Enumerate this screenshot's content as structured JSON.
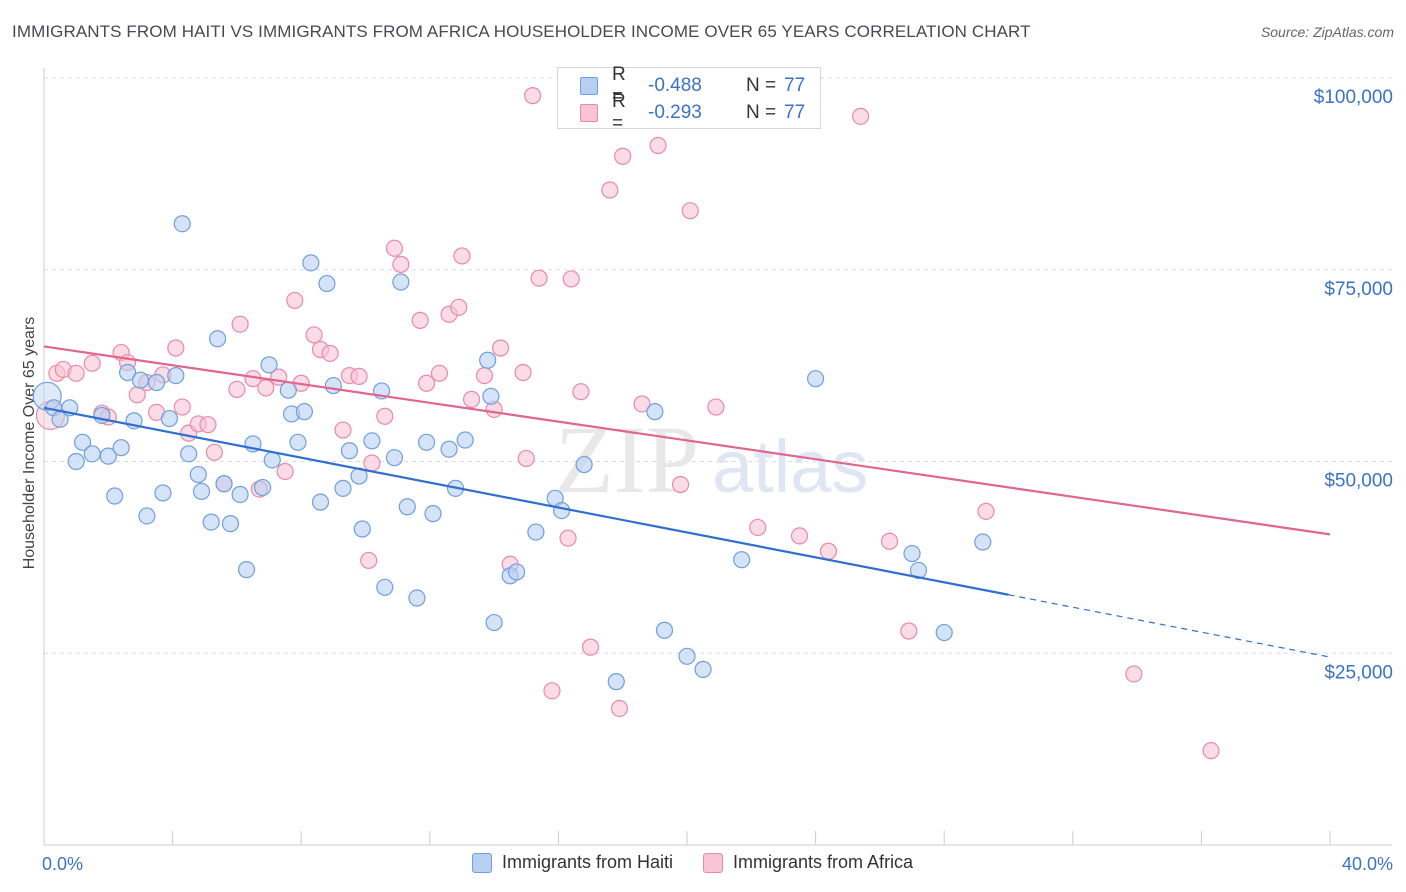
{
  "header": {
    "title": "IMMIGRANTS FROM HAITI VS IMMIGRANTS FROM AFRICA HOUSEHOLDER INCOME OVER 65 YEARS CORRELATION CHART",
    "source": "Source: ZipAtlas.com"
  },
  "watermark": {
    "zip": "ZIP",
    "atlas": "atlas"
  },
  "legend": {
    "haiti": {
      "r_label": "R =",
      "r_value": "-0.488",
      "n_label": "N =",
      "n_value": "77"
    },
    "africa": {
      "r_label": "R =",
      "r_value": "-0.293",
      "n_label": "N =",
      "n_value": "77"
    }
  },
  "colors": {
    "haiti_fill": "#b7d0f2",
    "haiti_stroke": "#6f9fde",
    "haiti_line": "#2f6fcf",
    "africa_fill": "#f8c3d3",
    "africa_stroke": "#e98aa8",
    "africa_line": "#e0658f",
    "axis_label": "#3b73c4",
    "grid": "#dcdcdc"
  },
  "chart_data": {
    "type": "scatter",
    "title": "IMMIGRANTS FROM HAITI VS IMMIGRANTS FROM AFRICA HOUSEHOLDER INCOME OVER 65 YEARS CORRELATION CHART",
    "xlabel": "",
    "ylabel": "Householder Income Over 65 years",
    "xlim": [
      0,
      40
    ],
    "ylim": [
      0,
      105000
    ],
    "x_tick_labels": [
      "0.0%",
      "40.0%"
    ],
    "y_ticks": [
      25000,
      50000,
      75000,
      100000
    ],
    "y_tick_labels": [
      "$25,000",
      "$50,000",
      "$75,000",
      "$100,000"
    ],
    "grid": true,
    "legend_position": "bottom",
    "series": [
      {
        "name": "Immigrants from Haiti",
        "r": -0.488,
        "n": 77,
        "trend": {
          "x_start": 0,
          "y_start": 57000,
          "x_solid_end": 30,
          "x_end": 40,
          "y_end": 24500
        },
        "points": [
          [
            0.1,
            58500
          ],
          [
            0.3,
            57000
          ],
          [
            0.5,
            55500
          ],
          [
            0.8,
            57000
          ],
          [
            1.0,
            50000
          ],
          [
            1.2,
            52500
          ],
          [
            1.5,
            51000
          ],
          [
            1.8,
            56000
          ],
          [
            2.0,
            50700
          ],
          [
            2.2,
            45500
          ],
          [
            2.4,
            51800
          ],
          [
            2.6,
            61600
          ],
          [
            2.8,
            55300
          ],
          [
            3.0,
            60600
          ],
          [
            3.2,
            42900
          ],
          [
            3.5,
            60300
          ],
          [
            3.7,
            45900
          ],
          [
            3.9,
            55600
          ],
          [
            4.1,
            61200
          ],
          [
            4.3,
            81000
          ],
          [
            4.5,
            51000
          ],
          [
            4.8,
            48300
          ],
          [
            4.9,
            46100
          ],
          [
            5.2,
            42100
          ],
          [
            5.4,
            66000
          ],
          [
            5.6,
            47100
          ],
          [
            5.8,
            41900
          ],
          [
            6.1,
            45700
          ],
          [
            6.3,
            35900
          ],
          [
            6.5,
            52300
          ],
          [
            6.8,
            46600
          ],
          [
            7.0,
            62600
          ],
          [
            7.1,
            50200
          ],
          [
            7.6,
            59300
          ],
          [
            7.7,
            56200
          ],
          [
            7.9,
            52500
          ],
          [
            8.1,
            56500
          ],
          [
            8.3,
            75900
          ],
          [
            8.6,
            44700
          ],
          [
            8.8,
            73200
          ],
          [
            9.0,
            59900
          ],
          [
            9.3,
            46500
          ],
          [
            9.5,
            51400
          ],
          [
            9.8,
            48100
          ],
          [
            9.9,
            41200
          ],
          [
            10.2,
            52700
          ],
          [
            10.5,
            59200
          ],
          [
            10.6,
            33600
          ],
          [
            10.9,
            50500
          ],
          [
            11.1,
            73400
          ],
          [
            11.3,
            44100
          ],
          [
            11.6,
            32200
          ],
          [
            11.9,
            52500
          ],
          [
            12.1,
            43200
          ],
          [
            12.6,
            51600
          ],
          [
            12.8,
            46500
          ],
          [
            13.1,
            52800
          ],
          [
            13.8,
            63200
          ],
          [
            13.9,
            58500
          ],
          [
            14.0,
            29000
          ],
          [
            14.5,
            35100
          ],
          [
            14.7,
            35600
          ],
          [
            15.3,
            40800
          ],
          [
            15.9,
            45200
          ],
          [
            16.1,
            43600
          ],
          [
            16.8,
            49600
          ],
          [
            17.8,
            21300
          ],
          [
            19.0,
            56500
          ],
          [
            19.3,
            28000
          ],
          [
            20.0,
            24600
          ],
          [
            20.5,
            22900
          ],
          [
            21.7,
            37200
          ],
          [
            24.0,
            60800
          ],
          [
            27.0,
            38000
          ],
          [
            27.2,
            35800
          ],
          [
            28.0,
            27700
          ],
          [
            29.2,
            39500
          ]
        ]
      },
      {
        "name": "Immigrants from Africa",
        "r": -0.293,
        "n": 77,
        "trend": {
          "x_start": 0,
          "y_start": 65000,
          "x_end": 40,
          "y_end": 40500
        },
        "points": [
          [
            0.2,
            56000
          ],
          [
            0.4,
            61500
          ],
          [
            0.6,
            62000
          ],
          [
            1.0,
            61500
          ],
          [
            1.5,
            62800
          ],
          [
            1.8,
            56300
          ],
          [
            2.0,
            55800
          ],
          [
            2.4,
            64200
          ],
          [
            2.6,
            62900
          ],
          [
            2.9,
            58700
          ],
          [
            3.2,
            60300
          ],
          [
            3.5,
            56400
          ],
          [
            3.7,
            61300
          ],
          [
            4.1,
            64800
          ],
          [
            4.3,
            57100
          ],
          [
            4.5,
            53700
          ],
          [
            4.8,
            54900
          ],
          [
            5.1,
            54800
          ],
          [
            5.3,
            51200
          ],
          [
            5.6,
            47100
          ],
          [
            6.0,
            59400
          ],
          [
            6.1,
            67900
          ],
          [
            6.5,
            60800
          ],
          [
            6.7,
            46400
          ],
          [
            6.9,
            59600
          ],
          [
            7.3,
            61000
          ],
          [
            7.5,
            48700
          ],
          [
            7.8,
            71000
          ],
          [
            8.0,
            60200
          ],
          [
            8.4,
            66500
          ],
          [
            8.6,
            64600
          ],
          [
            8.9,
            64100
          ],
          [
            9.3,
            54100
          ],
          [
            9.5,
            61200
          ],
          [
            9.8,
            61100
          ],
          [
            10.1,
            37100
          ],
          [
            10.2,
            49800
          ],
          [
            10.6,
            55900
          ],
          [
            10.9,
            77800
          ],
          [
            11.1,
            75700
          ],
          [
            11.7,
            68400
          ],
          [
            11.9,
            60200
          ],
          [
            12.3,
            61500
          ],
          [
            12.6,
            69200
          ],
          [
            12.9,
            70100
          ],
          [
            13.0,
            76800
          ],
          [
            13.3,
            58100
          ],
          [
            13.7,
            61200
          ],
          [
            14.0,
            56800
          ],
          [
            14.2,
            64800
          ],
          [
            14.5,
            36600
          ],
          [
            14.9,
            61600
          ],
          [
            15.2,
            97700
          ],
          [
            15.4,
            73900
          ],
          [
            15.8,
            20100
          ],
          [
            16.3,
            40000
          ],
          [
            16.4,
            73800
          ],
          [
            16.7,
            59100
          ],
          [
            17.0,
            25800
          ],
          [
            17.6,
            85400
          ],
          [
            17.9,
            17800
          ],
          [
            18.0,
            89800
          ],
          [
            18.6,
            57500
          ],
          [
            19.1,
            91200
          ],
          [
            19.8,
            47000
          ],
          [
            20.1,
            82700
          ],
          [
            20.9,
            57100
          ],
          [
            22.2,
            41400
          ],
          [
            23.5,
            40300
          ],
          [
            24.4,
            38300
          ],
          [
            25.4,
            95000
          ],
          [
            26.3,
            39600
          ],
          [
            26.9,
            27900
          ],
          [
            29.3,
            43500
          ],
          [
            33.9,
            22300
          ],
          [
            36.3,
            12300
          ],
          [
            15.0,
            50400
          ]
        ]
      }
    ]
  }
}
